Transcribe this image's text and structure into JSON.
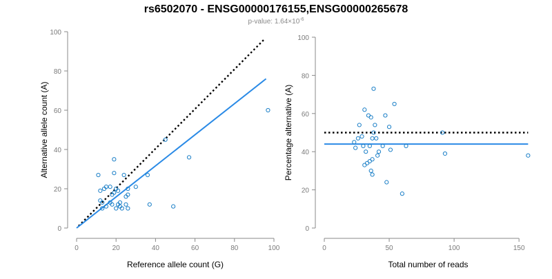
{
  "title": "rs6502070 - ENSG00000176155,ENSG00000265678",
  "subtitle_prefix": "p-value: 1.64×10",
  "subtitle_exponent": "-6",
  "colors": {
    "points": "#1b7fc7",
    "fit": "#2a8ae6",
    "reference": "#000000",
    "axis": "#888888"
  },
  "chart_data": [
    {
      "type": "scatter",
      "name": "allele-counts",
      "xlabel": "Reference allele count (G)",
      "ylabel": "Alternative allele count (A)",
      "xlim": [
        0,
        100
      ],
      "ylim": [
        0,
        100
      ],
      "xticks": [
        0,
        20,
        40,
        60,
        80,
        100
      ],
      "yticks": [
        0,
        20,
        40,
        60,
        80,
        100
      ],
      "points": [
        [
          11,
          27
        ],
        [
          12,
          19
        ],
        [
          12,
          14
        ],
        [
          13,
          10
        ],
        [
          13,
          13
        ],
        [
          14,
          20
        ],
        [
          15,
          11
        ],
        [
          15,
          21
        ],
        [
          17,
          13
        ],
        [
          17,
          21
        ],
        [
          18,
          12
        ],
        [
          18,
          17
        ],
        [
          19,
          35
        ],
        [
          19,
          28
        ],
        [
          19,
          18
        ],
        [
          20,
          20
        ],
        [
          20,
          10
        ],
        [
          21,
          12
        ],
        [
          21,
          19
        ],
        [
          22,
          11
        ],
        [
          22,
          13
        ],
        [
          23,
          10
        ],
        [
          24,
          27
        ],
        [
          25,
          12
        ],
        [
          25,
          16
        ],
        [
          26,
          20
        ],
        [
          26,
          10
        ],
        [
          26,
          17
        ],
        [
          30,
          21
        ],
        [
          36,
          27
        ],
        [
          37,
          12
        ],
        [
          45,
          45
        ],
        [
          49,
          11
        ],
        [
          57,
          36
        ],
        [
          97,
          60
        ]
      ],
      "reference_line": {
        "x": [
          1,
          95
        ],
        "y": [
          1,
          96
        ]
      },
      "fit_line": {
        "x": [
          0,
          96
        ],
        "y": [
          0,
          76
        ]
      }
    },
    {
      "type": "scatter",
      "name": "percentage",
      "xlabel": "Total number of reads",
      "ylabel": "Percentage alternative (A)",
      "xlim": [
        0,
        160
      ],
      "ylim": [
        0,
        100
      ],
      "xticks": [
        0,
        50,
        100,
        150
      ],
      "yticks": [
        0,
        20,
        40,
        60,
        80,
        100
      ],
      "points": [
        [
          23,
          45
        ],
        [
          24,
          42
        ],
        [
          26,
          47
        ],
        [
          27,
          54
        ],
        [
          29,
          48
        ],
        [
          30,
          43
        ],
        [
          31,
          62
        ],
        [
          31,
          33
        ],
        [
          32,
          40
        ],
        [
          33,
          34
        ],
        [
          34,
          59
        ],
        [
          35,
          35
        ],
        [
          35,
          43
        ],
        [
          36,
          30
        ],
        [
          36,
          58
        ],
        [
          37,
          28
        ],
        [
          37,
          36
        ],
        [
          37,
          47
        ],
        [
          38,
          73
        ],
        [
          38,
          50
        ],
        [
          39,
          54
        ],
        [
          40,
          47
        ],
        [
          41,
          38
        ],
        [
          42,
          40
        ],
        [
          45,
          43
        ],
        [
          47,
          59
        ],
        [
          48,
          24
        ],
        [
          50,
          53
        ],
        [
          51,
          41
        ],
        [
          54,
          65
        ],
        [
          60,
          18
        ],
        [
          63,
          43
        ],
        [
          91,
          50
        ],
        [
          93,
          39
        ],
        [
          157,
          38
        ]
      ],
      "reference_line": {
        "x": [
          0,
          157
        ],
        "y": [
          50,
          50
        ]
      },
      "fit_line": {
        "x": [
          0,
          157
        ],
        "y": [
          44,
          44
        ]
      }
    }
  ]
}
